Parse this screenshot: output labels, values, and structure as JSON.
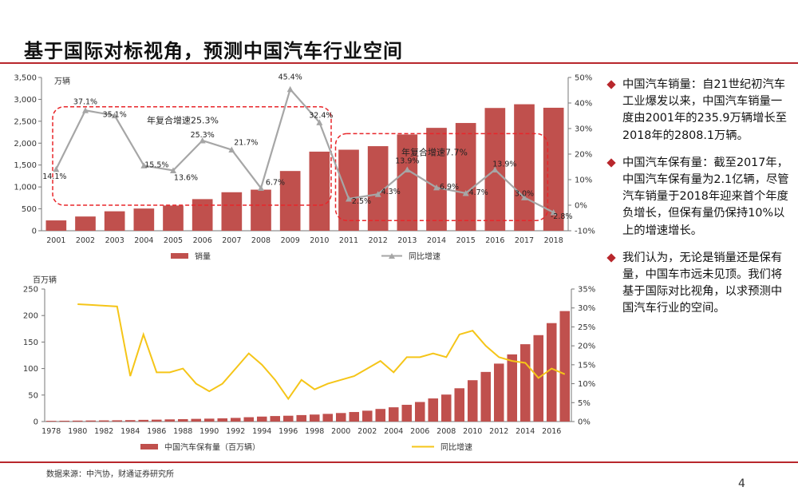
{
  "page": {
    "title": "基于国际对标视角，预测中国汽车行业空间",
    "source": "数据来源：中汽协，财通证券研究所",
    "page_number": "4",
    "accent": "#b8272c"
  },
  "bullets": [
    {
      "text": "中国汽车销量：自21世纪初汽车工业爆发以来，中国汽车销量一度由2001年的235.9万辆增长至2018年的2808.1万辆。"
    },
    {
      "text": "中国汽车保有量：截至2017年，中国汽车保有量为2.1亿辆，尽管汽车销量于2018年迎来首个年度负增长，但保有量仍保持10%以上的增速增长。"
    },
    {
      "text": "我们认为，无论是销量还是保有量，中国车市远未见顶。我们将基于国际对比视角，以求预测中国汽车行业的空间。"
    }
  ],
  "chart_data": [
    {
      "type": "bar+line",
      "title": "",
      "unit_left": "万辆",
      "categories": [
        "2001",
        "2002",
        "2003",
        "2004",
        "2005",
        "2006",
        "2007",
        "2008",
        "2009",
        "2010",
        "2011",
        "2012",
        "2013",
        "2014",
        "2015",
        "2016",
        "2017",
        "2018"
      ],
      "series": [
        {
          "name": "销量",
          "kind": "bar",
          "color": "#c0504d",
          "values": [
            235.9,
            325,
            444,
            507,
            576,
            722,
            879,
            938,
            1364,
            1806,
            1850,
            1931,
            2198,
            2349,
            2460,
            2803,
            2888,
            2808.1
          ]
        },
        {
          "name": "同比增速",
          "kind": "line",
          "color": "#a6a6a6",
          "axis": "right",
          "values": [
            14.1,
            37.1,
            35.1,
            15.5,
            13.6,
            25.3,
            21.7,
            6.7,
            45.4,
            32.4,
            2.5,
            4.3,
            13.9,
            6.9,
            4.7,
            13.9,
            3.0,
            -2.8
          ],
          "labels": [
            "14.1%",
            "37.1%",
            "35.1%",
            "15.5%",
            "13.6%",
            "25.3%",
            "21.7%",
            "6.7%",
            "45.4%",
            "32.4%",
            "2.5%",
            "4.3%",
            "13.9%",
            "6.9%",
            "4.7%",
            "13.9%",
            "3.0%",
            "-2.8%"
          ]
        }
      ],
      "y_left": {
        "min": 0,
        "max": 3500,
        "ticks": [
          "0",
          "500",
          "1,000",
          "1,500",
          "2,000",
          "2,500",
          "3,000",
          "3,500"
        ]
      },
      "y_right": {
        "min": -10,
        "max": 50,
        "ticks": [
          "-10%",
          "0%",
          "10%",
          "20%",
          "30%",
          "40%",
          "50%"
        ]
      },
      "annotations": [
        "年复合增速25.3%",
        "年复合增速7.7%"
      ],
      "legend": [
        "销量",
        "同比增速"
      ]
    },
    {
      "type": "bar+line",
      "unit_left": "百万辆",
      "categories": [
        "1978",
        "1979",
        "1980",
        "1981",
        "1982",
        "1983",
        "1984",
        "1985",
        "1986",
        "1987",
        "1988",
        "1989",
        "1990",
        "1991",
        "1992",
        "1993",
        "1994",
        "1995",
        "1996",
        "1997",
        "1998",
        "1999",
        "2000",
        "2001",
        "2002",
        "2003",
        "2004",
        "2005",
        "2006",
        "2007",
        "2008",
        "2009",
        "2010",
        "2011",
        "2012",
        "2013",
        "2014",
        "2015",
        "2016",
        "2017"
      ],
      "x_tick_labels": [
        "1978",
        "1980",
        "1982",
        "1984",
        "1986",
        "1988",
        "1990",
        "1992",
        "1994",
        "1996",
        "1998",
        "2000",
        "2002",
        "2004",
        "2006",
        "2008",
        "2010",
        "2012",
        "2014",
        "2016"
      ],
      "series": [
        {
          "name": "中国汽车保有量（百万辆）",
          "kind": "bar",
          "color": "#c0504d",
          "values": [
            1.36,
            1.56,
            1.78,
            2.0,
            2.2,
            2.4,
            2.7,
            3.2,
            3.6,
            4.1,
            4.6,
            5.1,
            5.5,
            6.1,
            6.9,
            8.2,
            9.4,
            10.4,
            11.0,
            12.2,
            13.2,
            14.5,
            16.1,
            18.0,
            20.5,
            23.8,
            26.9,
            31.6,
            36.9,
            43.6,
            50.9,
            62.8,
            78.0,
            93.6,
            109.3,
            126.7,
            145.9,
            163.0,
            185.7,
            208.4
          ]
        },
        {
          "name": "同比增速",
          "kind": "line",
          "color": "#f5c518",
          "axis": "right",
          "values": [
            null,
            null,
            31,
            30.8,
            30.6,
            30.4,
            12,
            23,
            13,
            13,
            14,
            10,
            8,
            10,
            14,
            18,
            15,
            11,
            6,
            11,
            8.5,
            10,
            11,
            12,
            14,
            16,
            13,
            17,
            17,
            18,
            17,
            23,
            24,
            20,
            17,
            16,
            15.5,
            11.5,
            14,
            12.5
          ]
        }
      ],
      "y_left": {
        "min": 0,
        "max": 250,
        "ticks": [
          "0",
          "50",
          "100",
          "150",
          "200",
          "250"
        ]
      },
      "y_right": {
        "min": 0,
        "max": 35,
        "ticks": [
          "0%",
          "5%",
          "10%",
          "15%",
          "20%",
          "25%",
          "30%",
          "35%"
        ]
      },
      "legend": [
        "中国汽车保有量（百万辆）",
        "同比增速"
      ]
    }
  ]
}
